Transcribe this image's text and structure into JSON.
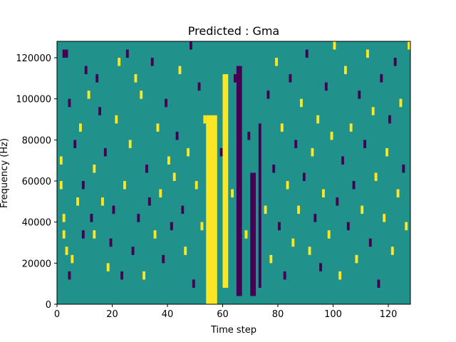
{
  "chart_data": {
    "type": "heatmap",
    "title": "Predicted : Gma",
    "xlabel": "Time step",
    "ylabel": "Frequency (Hz)",
    "xlim": [
      0,
      128
    ],
    "ylim": [
      0,
      128000
    ],
    "xticks": [
      0,
      20,
      40,
      60,
      80,
      100,
      120
    ],
    "yticks": [
      0,
      20000,
      40000,
      60000,
      80000,
      100000,
      120000
    ],
    "n_time_steps": 128,
    "n_freq_bins": 32,
    "colors": {
      "background": "#21918c",
      "low": "#440154",
      "high": "#fde725"
    },
    "bands": [
      {
        "level": "high",
        "x0": 54,
        "x1": 58,
        "y0": 0,
        "y1": 92000
      },
      {
        "level": "high",
        "x0": 60,
        "x1": 62,
        "y0": 8000,
        "y1": 112000
      },
      {
        "level": "low",
        "x0": 65,
        "x1": 67,
        "y0": 4000,
        "y1": 116000
      },
      {
        "level": "low",
        "x0": 70,
        "x1": 72,
        "y0": 4000,
        "y1": 64000
      },
      {
        "level": "low",
        "x0": 73,
        "x1": 74,
        "y0": 8000,
        "y1": 88000
      }
    ],
    "cells": [
      {
        "x": 1,
        "y": 17,
        "v": "high"
      },
      {
        "x": 2,
        "y": 30,
        "v": "low"
      },
      {
        "x": 3,
        "y": 30,
        "v": "low"
      },
      {
        "x": 4,
        "y": 3,
        "v": "low"
      },
      {
        "x": 2,
        "y": 8,
        "v": "high"
      },
      {
        "x": 2,
        "y": 10,
        "v": "high"
      },
      {
        "x": 3,
        "y": 6,
        "v": "high"
      },
      {
        "x": 1,
        "y": 14,
        "v": "high"
      },
      {
        "x": 4,
        "y": 24,
        "v": "low"
      },
      {
        "x": 5,
        "y": 5,
        "v": "high"
      },
      {
        "x": 6,
        "y": 19,
        "v": "low"
      },
      {
        "x": 7,
        "y": 12,
        "v": "high"
      },
      {
        "x": 8,
        "y": 21,
        "v": "high"
      },
      {
        "x": 9,
        "y": 14,
        "v": "low"
      },
      {
        "x": 9,
        "y": 8,
        "v": "low"
      },
      {
        "x": 10,
        "y": 28,
        "v": "low"
      },
      {
        "x": 11,
        "y": 25,
        "v": "high"
      },
      {
        "x": 12,
        "y": 10,
        "v": "low"
      },
      {
        "x": 13,
        "y": 16,
        "v": "high"
      },
      {
        "x": 14,
        "y": 27,
        "v": "low"
      },
      {
        "x": 15,
        "y": 23,
        "v": "low"
      },
      {
        "x": 16,
        "y": 12,
        "v": "high"
      },
      {
        "x": 13,
        "y": 8,
        "v": "high"
      },
      {
        "x": 17,
        "y": 18,
        "v": "low"
      },
      {
        "x": 18,
        "y": 4,
        "v": "high"
      },
      {
        "x": 19,
        "y": 7,
        "v": "low"
      },
      {
        "x": 20,
        "y": 11,
        "v": "low"
      },
      {
        "x": 21,
        "y": 22,
        "v": "high"
      },
      {
        "x": 22,
        "y": 29,
        "v": "high"
      },
      {
        "x": 23,
        "y": 3,
        "v": "low"
      },
      {
        "x": 24,
        "y": 14,
        "v": "high"
      },
      {
        "x": 25,
        "y": 30,
        "v": "low"
      },
      {
        "x": 26,
        "y": 19,
        "v": "high"
      },
      {
        "x": 27,
        "y": 6,
        "v": "low"
      },
      {
        "x": 28,
        "y": 27,
        "v": "high"
      },
      {
        "x": 29,
        "y": 10,
        "v": "low"
      },
      {
        "x": 30,
        "y": 25,
        "v": "high"
      },
      {
        "x": 31,
        "y": 3,
        "v": "high"
      },
      {
        "x": 32,
        "y": 16,
        "v": "low"
      },
      {
        "x": 33,
        "y": 12,
        "v": "low"
      },
      {
        "x": 34,
        "y": 29,
        "v": "low"
      },
      {
        "x": 35,
        "y": 8,
        "v": "high"
      },
      {
        "x": 36,
        "y": 21,
        "v": "high"
      },
      {
        "x": 37,
        "y": 13,
        "v": "high"
      },
      {
        "x": 38,
        "y": 5,
        "v": "low"
      },
      {
        "x": 39,
        "y": 24,
        "v": "low"
      },
      {
        "x": 40,
        "y": 17,
        "v": "high"
      },
      {
        "x": 41,
        "y": 9,
        "v": "low"
      },
      {
        "x": 42,
        "y": 15,
        "v": "high"
      },
      {
        "x": 43,
        "y": 20,
        "v": "low"
      },
      {
        "x": 44,
        "y": 28,
        "v": "high"
      },
      {
        "x": 45,
        "y": 11,
        "v": "low"
      },
      {
        "x": 46,
        "y": 6,
        "v": "high"
      },
      {
        "x": 47,
        "y": 18,
        "v": "high"
      },
      {
        "x": 48,
        "y": 31,
        "v": "low"
      },
      {
        "x": 49,
        "y": 2,
        "v": "low"
      },
      {
        "x": 50,
        "y": 14,
        "v": "high"
      },
      {
        "x": 51,
        "y": 26,
        "v": "low"
      },
      {
        "x": 52,
        "y": 9,
        "v": "high"
      },
      {
        "x": 53,
        "y": 22,
        "v": "high"
      },
      {
        "x": 59,
        "y": 18,
        "v": "low"
      },
      {
        "x": 63,
        "y": 13,
        "v": "high"
      },
      {
        "x": 64,
        "y": 27,
        "v": "low"
      },
      {
        "x": 68,
        "y": 8,
        "v": "high"
      },
      {
        "x": 69,
        "y": 20,
        "v": "low"
      },
      {
        "x": 75,
        "y": 11,
        "v": "high"
      },
      {
        "x": 76,
        "y": 25,
        "v": "low"
      },
      {
        "x": 77,
        "y": 5,
        "v": "high"
      },
      {
        "x": 78,
        "y": 16,
        "v": "low"
      },
      {
        "x": 79,
        "y": 29,
        "v": "high"
      },
      {
        "x": 80,
        "y": 9,
        "v": "low"
      },
      {
        "x": 81,
        "y": 21,
        "v": "high"
      },
      {
        "x": 82,
        "y": 3,
        "v": "low"
      },
      {
        "x": 83,
        "y": 14,
        "v": "high"
      },
      {
        "x": 84,
        "y": 27,
        "v": "low"
      },
      {
        "x": 85,
        "y": 7,
        "v": "high"
      },
      {
        "x": 86,
        "y": 19,
        "v": "low"
      },
      {
        "x": 87,
        "y": 11,
        "v": "high"
      },
      {
        "x": 88,
        "y": 24,
        "v": "high"
      },
      {
        "x": 89,
        "y": 15,
        "v": "low"
      },
      {
        "x": 90,
        "y": 30,
        "v": "low"
      },
      {
        "x": 91,
        "y": 6,
        "v": "high"
      },
      {
        "x": 92,
        "y": 18,
        "v": "high"
      },
      {
        "x": 93,
        "y": 10,
        "v": "low"
      },
      {
        "x": 94,
        "y": 22,
        "v": "high"
      },
      {
        "x": 95,
        "y": 4,
        "v": "low"
      },
      {
        "x": 96,
        "y": 13,
        "v": "high"
      },
      {
        "x": 97,
        "y": 26,
        "v": "low"
      },
      {
        "x": 98,
        "y": 8,
        "v": "high"
      },
      {
        "x": 99,
        "y": 20,
        "v": "high"
      },
      {
        "x": 100,
        "y": 31,
        "v": "high"
      },
      {
        "x": 101,
        "y": 12,
        "v": "low"
      },
      {
        "x": 102,
        "y": 3,
        "v": "high"
      },
      {
        "x": 103,
        "y": 17,
        "v": "low"
      },
      {
        "x": 104,
        "y": 28,
        "v": "high"
      },
      {
        "x": 105,
        "y": 9,
        "v": "low"
      },
      {
        "x": 106,
        "y": 21,
        "v": "high"
      },
      {
        "x": 107,
        "y": 14,
        "v": "low"
      },
      {
        "x": 108,
        "y": 5,
        "v": "high"
      },
      {
        "x": 109,
        "y": 25,
        "v": "low"
      },
      {
        "x": 110,
        "y": 11,
        "v": "high"
      },
      {
        "x": 111,
        "y": 19,
        "v": "low"
      },
      {
        "x": 112,
        "y": 30,
        "v": "high"
      },
      {
        "x": 113,
        "y": 7,
        "v": "low"
      },
      {
        "x": 114,
        "y": 23,
        "v": "high"
      },
      {
        "x": 115,
        "y": 15,
        "v": "high"
      },
      {
        "x": 116,
        "y": 2,
        "v": "low"
      },
      {
        "x": 117,
        "y": 27,
        "v": "low"
      },
      {
        "x": 118,
        "y": 10,
        "v": "high"
      },
      {
        "x": 119,
        "y": 18,
        "v": "high"
      },
      {
        "x": 120,
        "y": 22,
        "v": "low"
      },
      {
        "x": 121,
        "y": 6,
        "v": "high"
      },
      {
        "x": 122,
        "y": 29,
        "v": "low"
      },
      {
        "x": 123,
        "y": 13,
        "v": "high"
      },
      {
        "x": 124,
        "y": 24,
        "v": "high"
      },
      {
        "x": 125,
        "y": 16,
        "v": "low"
      },
      {
        "x": 126,
        "y": 9,
        "v": "high"
      },
      {
        "x": 127,
        "y": 31,
        "v": "high"
      }
    ]
  }
}
